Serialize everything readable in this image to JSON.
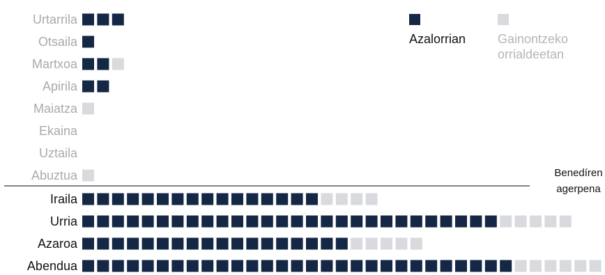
{
  "chart_data": {
    "type": "bar",
    "subtype": "unit-square pictogram (stacked)",
    "categories": [
      "Urtarrila",
      "Otsaila",
      "Martxoa",
      "Apirila",
      "Maiatza",
      "Ekaina",
      "Uztaila",
      "Abuztua",
      "Iraila",
      "Urria",
      "Azaroa",
      "Abendua"
    ],
    "series": [
      {
        "name": "Azalorrian",
        "values": [
          3,
          1,
          2,
          2,
          0,
          0,
          0,
          0,
          16,
          28,
          18,
          29
        ]
      },
      {
        "name": "Gainontzeko orrialdeetan",
        "values": [
          0,
          0,
          1,
          0,
          1,
          0,
          0,
          1,
          4,
          5,
          5,
          6
        ]
      }
    ],
    "legend": {
      "position": "top-right",
      "items": [
        {
          "label": "Azalorrian",
          "color": "#142744"
        },
        {
          "label_lines": [
            "Gainontzeko",
            "orrialdeetan"
          ],
          "color": "#d9dadd"
        }
      ]
    },
    "annotation": {
      "lines": [
        "Benedíren",
        "agerpena"
      ]
    },
    "colors": {
      "primary": "#142744",
      "secondary": "#d9dadd",
      "label_highlight": "#111111",
      "label_muted": "#a9aaae",
      "legend_muted": "#b4b5b9"
    },
    "highlight_from_index": 8
  }
}
